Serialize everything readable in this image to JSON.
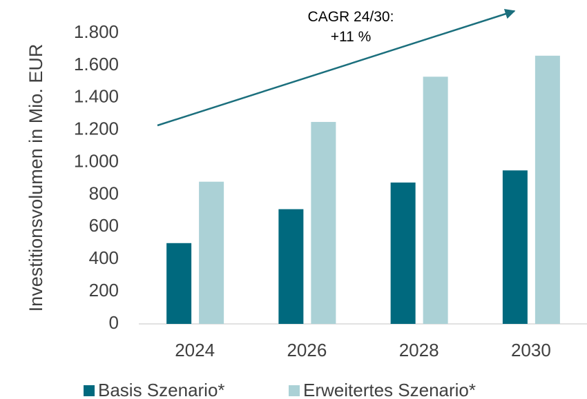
{
  "chart_data": {
    "type": "bar",
    "y_label": "Investitionsvolumen in Mio. EUR",
    "annotation": "CAGR 24/30:\n+11 %",
    "categories": [
      "2024",
      "2026",
      "2028",
      "2030"
    ],
    "series": [
      {
        "name": "Basis Szenario*",
        "color": "#00697e",
        "values": [
          500,
          710,
          875,
          950
        ]
      },
      {
        "name": "Erweitertes Szenario*",
        "color": "#abd1d6",
        "values": [
          880,
          1250,
          1530,
          1660
        ]
      }
    ],
    "ylim": [
      0,
      1800
    ],
    "yticks": [
      0,
      200,
      400,
      600,
      800,
      {
        "value": 1000,
        "label": "1.000"
      },
      {
        "value": 1200,
        "label": "1.200"
      },
      {
        "value": 1400,
        "label": "1.400"
      },
      {
        "value": 1600,
        "label": "1.600"
      },
      {
        "value": 1800,
        "label": "1.800"
      }
    ],
    "grid": false,
    "legend": "bottom"
  }
}
